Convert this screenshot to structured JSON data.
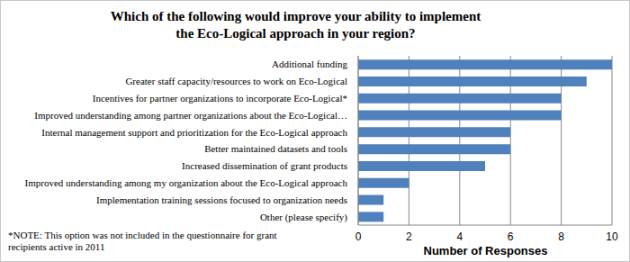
{
  "chart_data": {
    "type": "bar",
    "title": "Which of the following would improve your ability to implement\nthe Eco-Logical approach in your region?",
    "orientation": "horizontal",
    "categories": [
      "Additional funding",
      "Greater staff capacity/resources to work on Eco-Logical",
      "Incentives for partner organizations to incorporate Eco-Logical*",
      "Improved understanding among partner organizations about the Eco-Logical…",
      "Internal management support and prioritization for the Eco-Logical approach",
      "Better maintained datasets and tools",
      "Increased dissemination of grant products",
      "Improved understanding among my organization about the Eco-Logical approach",
      "Implementation training sessions focused to organization needs",
      "Other (please specify)"
    ],
    "values": [
      10,
      9,
      8,
      8,
      6,
      6,
      5,
      2,
      1,
      1
    ],
    "color": "#4f81bd",
    "xlabel": "Number of Responses",
    "xlim": [
      0,
      10
    ],
    "xticks": [
      0,
      2,
      4,
      6,
      8,
      10
    ],
    "grid": true,
    "annotations": [
      "*NOTE: This option was not included in the questionnaire for grant\nrecipients active in 2011"
    ]
  }
}
